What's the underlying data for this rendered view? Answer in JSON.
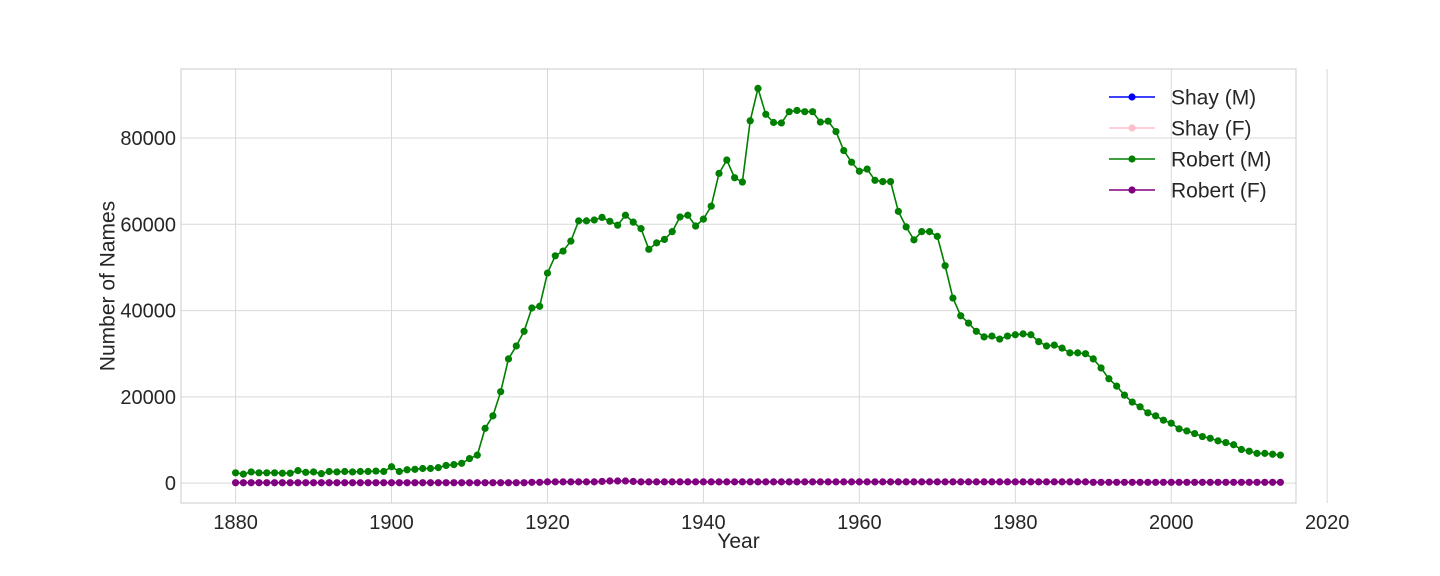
{
  "chart_data": {
    "type": "line",
    "title": "",
    "xlabel": "Year",
    "ylabel": "Number of Names",
    "xlim": [
      1873,
      2016
    ],
    "ylim": [
      -4600,
      96000
    ],
    "x_ticks": [
      1880,
      1900,
      1920,
      1940,
      1960,
      1980,
      2000,
      2020
    ],
    "y_ticks": [
      0,
      20000,
      40000,
      60000,
      80000
    ],
    "grid": true,
    "legend_position": "top-right",
    "colors": {
      "Shay (M)": "#0000ff",
      "Shay (F)": "#ffc0cb",
      "Robert (M)": "#008000",
      "Robert (F)": "#800080"
    },
    "x_start_year": 1880,
    "series": [
      {
        "name": "Shay (M)",
        "values": []
      },
      {
        "name": "Shay (F)",
        "values": []
      },
      {
        "name": "Robert (M)",
        "values": [
          2400,
          2100,
          2600,
          2400,
          2400,
          2400,
          2300,
          2300,
          2900,
          2500,
          2600,
          2200,
          2700,
          2600,
          2700,
          2600,
          2700,
          2700,
          2800,
          2700,
          3800,
          2700,
          3100,
          3200,
          3400,
          3400,
          3600,
          4100,
          4300,
          4600,
          5700,
          6500,
          12700,
          15600,
          21200,
          28800,
          31800,
          35200,
          40600,
          41000,
          48700,
          52700,
          53800,
          56100,
          60800,
          60800,
          61000,
          61600,
          60700,
          59800,
          62100,
          60500,
          59000,
          54200,
          55700,
          56500,
          58300,
          61700,
          62100,
          59600,
          61200,
          64200,
          71800,
          74900,
          70800,
          69800,
          84000,
          91500,
          85500,
          83600,
          83500,
          86100,
          86400,
          86100,
          86100,
          83700,
          83900,
          81500,
          77100,
          74400,
          72300,
          72800,
          70200,
          69900,
          69900,
          63000,
          59400,
          56400,
          58300,
          58300,
          57200,
          50400,
          42900,
          38800,
          37100,
          35200,
          33900,
          34100,
          33400,
          34100,
          34400,
          34600,
          34400,
          32800,
          31800,
          32000,
          31300,
          30200,
          30200,
          30000,
          28800,
          26700,
          24200,
          22500,
          20400,
          18800,
          17700,
          16300,
          15600,
          14600,
          13900,
          12600,
          12100,
          11500,
          10800,
          10400,
          9800,
          9400,
          8900,
          7800,
          7400,
          6900,
          6900,
          6700,
          6500
        ]
      },
      {
        "name": "Robert (F)",
        "values": [
          100,
          100,
          100,
          100,
          100,
          100,
          100,
          100,
          100,
          100,
          100,
          100,
          100,
          100,
          100,
          100,
          100,
          100,
          100,
          100,
          100,
          100,
          100,
          100,
          100,
          100,
          100,
          100,
          100,
          100,
          100,
          100,
          100,
          100,
          100,
          100,
          100,
          100,
          200,
          200,
          300,
          300,
          300,
          300,
          300,
          300,
          300,
          400,
          500,
          500,
          500,
          400,
          300,
          300,
          300,
          300,
          300,
          300,
          300,
          300,
          300,
          300,
          300,
          300,
          300,
          300,
          300,
          300,
          300,
          300,
          300,
          300,
          300,
          300,
          300,
          300,
          300,
          300,
          300,
          300,
          300,
          300,
          300,
          300,
          300,
          300,
          300,
          300,
          300,
          300,
          300,
          300,
          300,
          300,
          300,
          300,
          300,
          300,
          300,
          300,
          300,
          300,
          300,
          300,
          300,
          300,
          300,
          300,
          300,
          300,
          200,
          200,
          200,
          200,
          200,
          200,
          200,
          200,
          200,
          200,
          200,
          200,
          200,
          200,
          200,
          200,
          200,
          200,
          200,
          200,
          200,
          200,
          200,
          200,
          200
        ]
      }
    ]
  }
}
